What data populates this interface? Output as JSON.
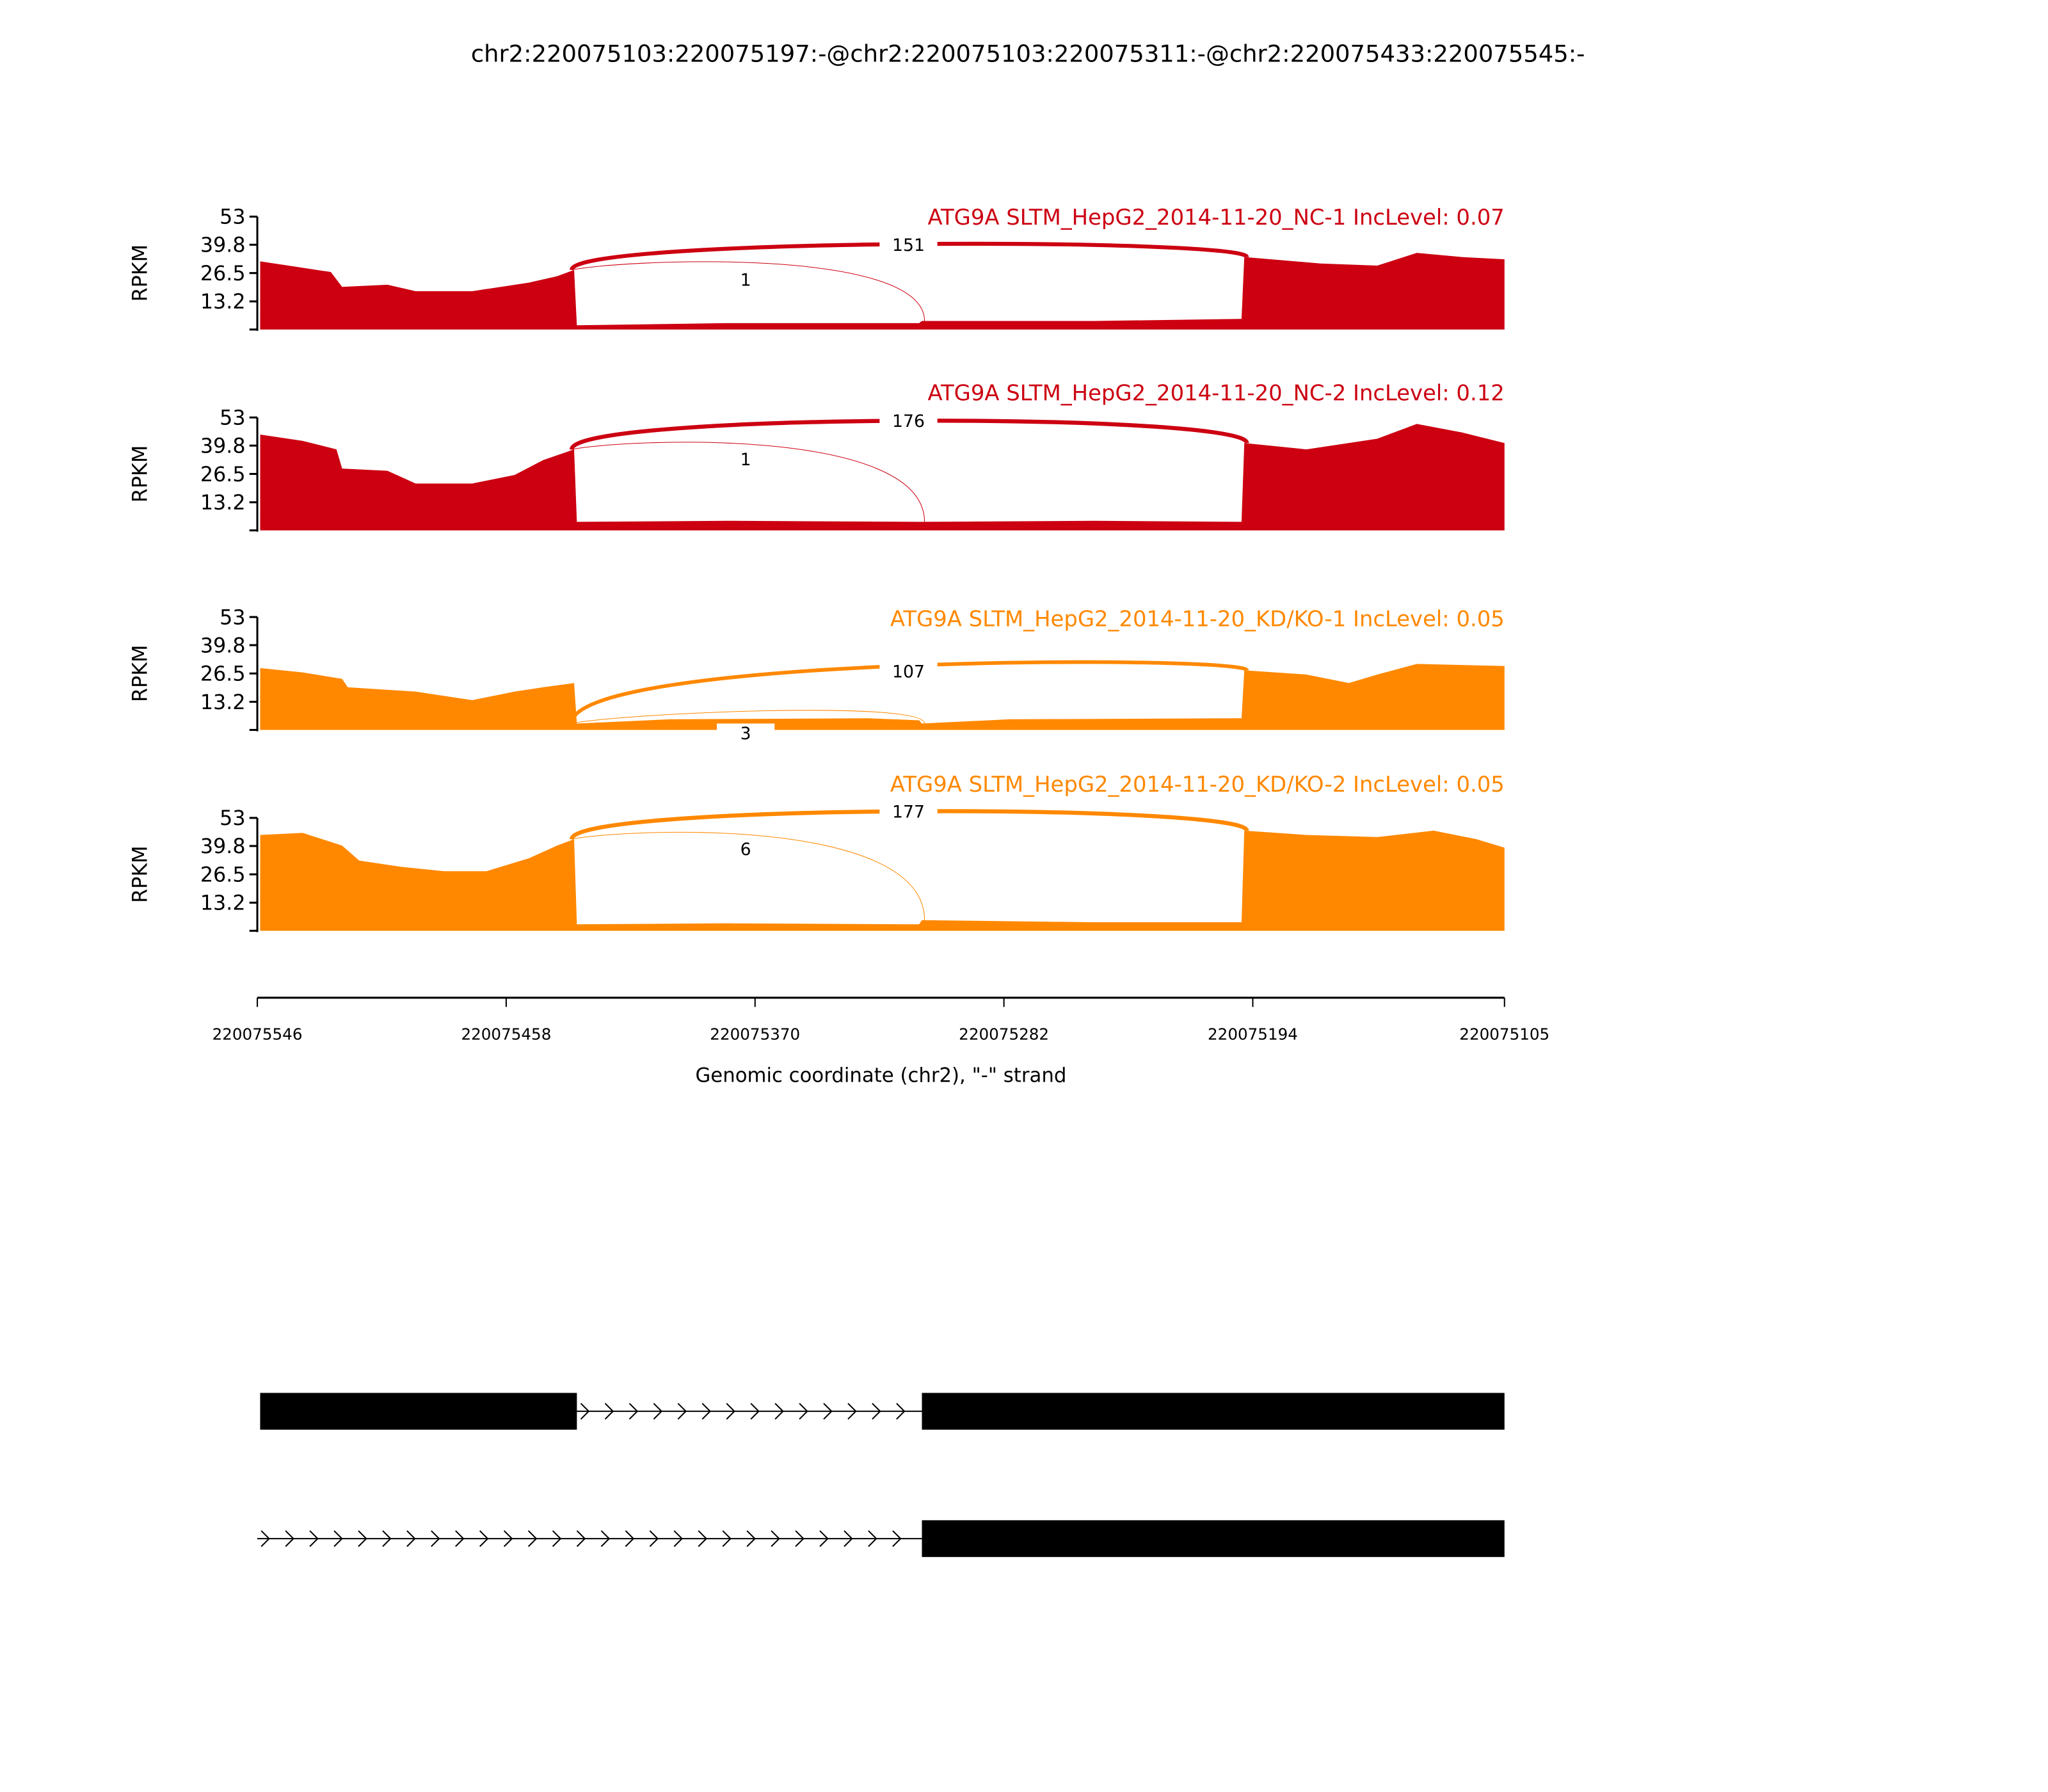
{
  "chart_data": {
    "type": "area",
    "title": "chr2:220075103:220075197:-@chr2:220075103:220075311:-@chr2:220075433:220075545:-",
    "xlabel": "Genomic coordinate (chr2), \"-\" strand",
    "ylabel": "RPKM",
    "xlim": [
      220075546,
      220075105
    ],
    "x_ticks": [
      "220075546",
      "220075458",
      "220075370",
      "220075282",
      "220075194",
      "220075105"
    ],
    "ylim": [
      0,
      53
    ],
    "y_ticks": [
      "53",
      "39.8",
      "26.5",
      "13.2"
    ],
    "colors": {
      "NC": "#cc0011",
      "KD": "#ff8800"
    },
    "panels": [
      {
        "label": "ATG9A SLTM_HepG2_2014-11-20_NC-1 IncLevel: 0.07",
        "color": "#cc0011",
        "junctions": [
          {
            "from": 220075433,
            "to": 220075197,
            "count": "151"
          },
          {
            "from": 220075433,
            "to": 220075311,
            "count": "1"
          }
        ],
        "coverage": [
          [
            220075545,
            32
          ],
          [
            220075535,
            30
          ],
          [
            220075520,
            27
          ],
          [
            220075516,
            20
          ],
          [
            220075500,
            21
          ],
          [
            220075490,
            18
          ],
          [
            220075470,
            18
          ],
          [
            220075450,
            22
          ],
          [
            220075440,
            25
          ],
          [
            220075434,
            28
          ],
          [
            220075433,
            2
          ],
          [
            220075380,
            3
          ],
          [
            220075312,
            3
          ],
          [
            220075311,
            4
          ],
          [
            220075250,
            4
          ],
          [
            220075198,
            5
          ],
          [
            220075197,
            34
          ],
          [
            220075170,
            31
          ],
          [
            220075150,
            30
          ],
          [
            220075136,
            36
          ],
          [
            220075120,
            34
          ],
          [
            220075105,
            33
          ]
        ]
      },
      {
        "label": "ATG9A SLTM_HepG2_2014-11-20_NC-2 IncLevel: 0.12",
        "color": "#cc0011",
        "junctions": [
          {
            "from": 220075433,
            "to": 220075197,
            "count": "176"
          },
          {
            "from": 220075433,
            "to": 220075311,
            "count": "1"
          }
        ],
        "coverage": [
          [
            220075545,
            45
          ],
          [
            220075530,
            42
          ],
          [
            220075518,
            38
          ],
          [
            220075516,
            29
          ],
          [
            220075500,
            28
          ],
          [
            220075490,
            22
          ],
          [
            220075470,
            22
          ],
          [
            220075455,
            26
          ],
          [
            220075445,
            33
          ],
          [
            220075434,
            38
          ],
          [
            220075433,
            4
          ],
          [
            220075380,
            4.5
          ],
          [
            220075312,
            4
          ],
          [
            220075311,
            4
          ],
          [
            220075250,
            4.5
          ],
          [
            220075198,
            4
          ],
          [
            220075197,
            41
          ],
          [
            220075175,
            38
          ],
          [
            220075150,
            43
          ],
          [
            220075136,
            50
          ],
          [
            220075120,
            46
          ],
          [
            220075105,
            41
          ]
        ]
      },
      {
        "label": "ATG9A SLTM_HepG2_2014-11-20_KD/KO-1 IncLevel: 0.05",
        "color": "#ff8800",
        "junctions": [
          {
            "from": 220075433,
            "to": 220075197,
            "count": "107"
          },
          {
            "from": 220075433,
            "to": 220075311,
            "count": "3"
          }
        ],
        "coverage": [
          [
            220075545,
            29
          ],
          [
            220075530,
            27
          ],
          [
            220075516,
            24
          ],
          [
            220075514,
            20
          ],
          [
            220075490,
            18
          ],
          [
            220075470,
            14
          ],
          [
            220075455,
            18
          ],
          [
            220075445,
            20
          ],
          [
            220075434,
            22
          ],
          [
            220075433,
            3
          ],
          [
            220075400,
            5
          ],
          [
            220075330,
            5.5
          ],
          [
            220075312,
            4.5
          ],
          [
            220075311,
            3
          ],
          [
            220075280,
            5
          ],
          [
            220075198,
            5.5
          ],
          [
            220075197,
            28
          ],
          [
            220075175,
            26
          ],
          [
            220075160,
            22
          ],
          [
            220075150,
            26
          ],
          [
            220075136,
            31
          ],
          [
            220075105,
            30
          ]
        ]
      },
      {
        "label": "ATG9A SLTM_HepG2_2014-11-20_KD/KO-2 IncLevel: 0.05",
        "color": "#ff8800",
        "junctions": [
          {
            "from": 220075433,
            "to": 220075197,
            "count": "177"
          },
          {
            "from": 220075433,
            "to": 220075311,
            "count": "6"
          }
        ],
        "coverage": [
          [
            220075545,
            45
          ],
          [
            220075530,
            46
          ],
          [
            220075516,
            40
          ],
          [
            220075510,
            33
          ],
          [
            220075495,
            30
          ],
          [
            220075480,
            28
          ],
          [
            220075465,
            28
          ],
          [
            220075450,
            34
          ],
          [
            220075440,
            40
          ],
          [
            220075434,
            43
          ],
          [
            220075433,
            3
          ],
          [
            220075380,
            3.5
          ],
          [
            220075312,
            3
          ],
          [
            220075311,
            5
          ],
          [
            220075250,
            4
          ],
          [
            220075198,
            4
          ],
          [
            220075197,
            47
          ],
          [
            220075175,
            45
          ],
          [
            220075150,
            44
          ],
          [
            220075130,
            47
          ],
          [
            220075115,
            43
          ],
          [
            220075105,
            39
          ]
        ]
      }
    ],
    "gene_model": [
      {
        "exons": [
          [
            220075433,
            220075545
          ],
          [
            220075103,
            220075311
          ]
        ],
        "intron_start": 220075546
      },
      {
        "exons": [
          [
            220075103,
            220075311
          ]
        ],
        "intron_start": 220075546
      }
    ]
  }
}
